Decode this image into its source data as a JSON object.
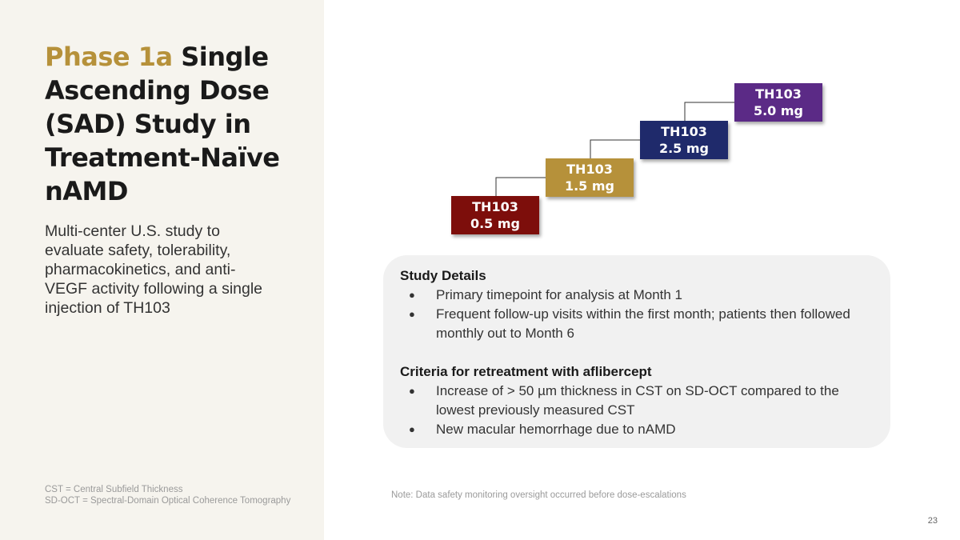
{
  "title": {
    "accent": "Phase 1a",
    "rest": " Single Ascending Dose (SAD) Study in Treatment-Naïve nAMD"
  },
  "subtitle": "Multi-center U.S. study to evaluate safety, tolerability, pharmacokinetics, and anti-VEGF activity following a single injection of TH103",
  "doses": [
    {
      "drug": "TH103",
      "dose": "0.5 mg",
      "color": "#7d0e0b"
    },
    {
      "drug": "TH103",
      "dose": "1.5 mg",
      "color": "#b6913a"
    },
    {
      "drug": "TH103",
      "dose": "2.5 mg",
      "color": "#1f2a6b"
    },
    {
      "drug": "TH103",
      "dose": "5.0  mg",
      "color": "#5b2a86"
    }
  ],
  "study_details": {
    "heading": "Study Details",
    "items": [
      "Primary timepoint for analysis at Month 1",
      "Frequent follow-up visits within the first month; patients then followed monthly out to Month 6"
    ]
  },
  "retreatment": {
    "heading": "Criteria for retreatment with aflibercept",
    "items": [
      "Increase of > 50 µm thickness in CST on SD-OCT compared to the lowest previously measured CST",
      "New macular hemorrhage due to nAMD"
    ]
  },
  "footnotes": [
    "CST = Central Subfield Thickness",
    "SD-OCT = Spectral-Domain Optical Coherence Tomography"
  ],
  "note": "Note: Data safety monitoring oversight occurred before dose-escalations",
  "page_number": "23"
}
